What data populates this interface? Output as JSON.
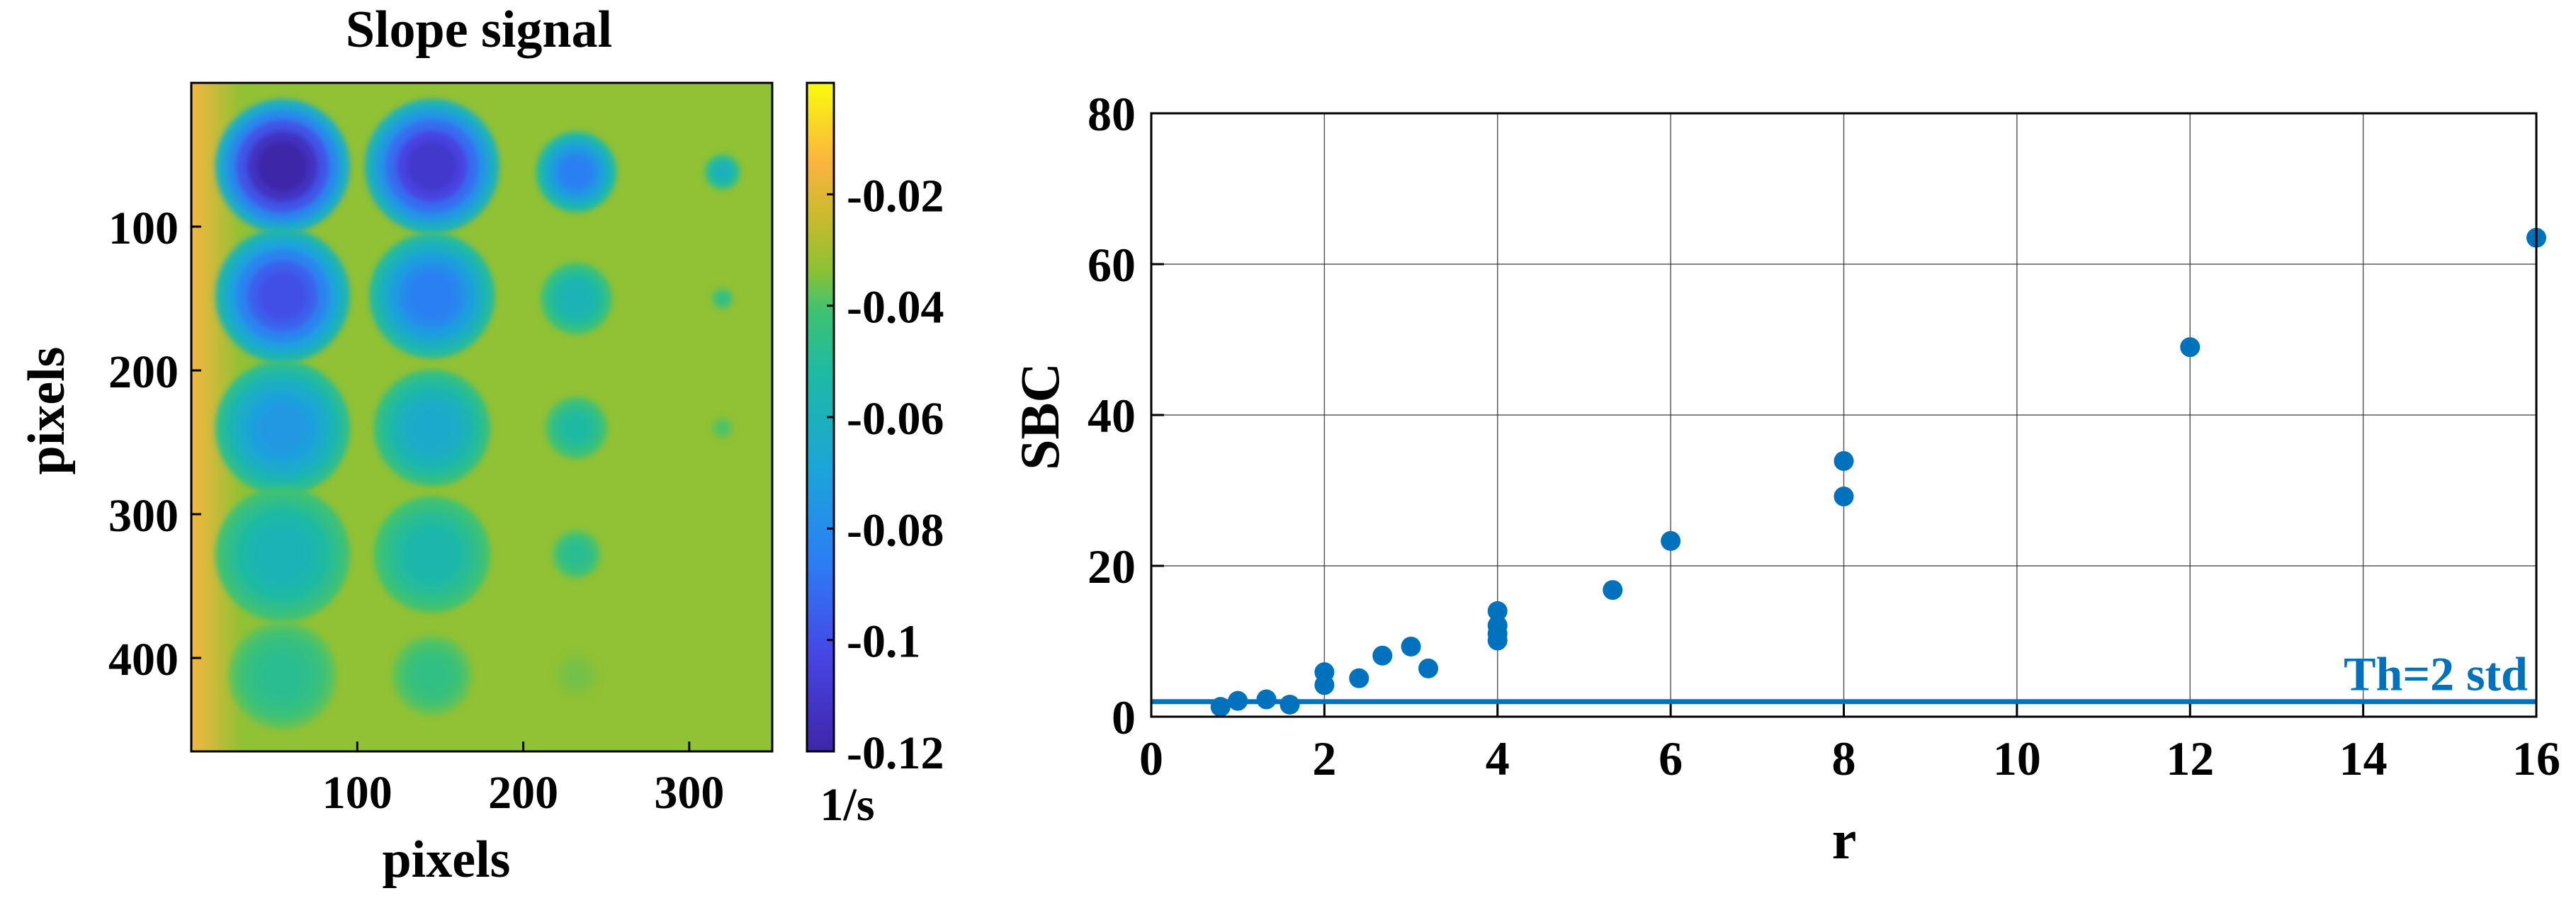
{
  "chart_data": [
    {
      "type": "heatmap",
      "title": "Slope signal",
      "xlabel": "pixels",
      "ylabel": "pixels",
      "xlim": [
        0,
        350
      ],
      "ylim": [
        0,
        465
      ],
      "x_ticks": [
        100,
        200,
        300
      ],
      "y_ticks": [
        100,
        200,
        300,
        400
      ],
      "colorbar": {
        "unit": "1/s",
        "range": [
          -0.12,
          0.0
        ],
        "ticks": [
          "-0.02",
          "-0.04",
          "-0.06",
          "-0.08",
          "-0.1",
          "-0.12"
        ],
        "tick_values": [
          -0.02,
          -0.04,
          -0.06,
          -0.08,
          -0.1,
          -0.12
        ]
      },
      "background_value": -0.033,
      "spots": [
        {
          "x": 55,
          "y": 58,
          "r": 30,
          "value": -0.12
        },
        {
          "x": 145,
          "y": 58,
          "r": 30,
          "value": -0.11
        },
        {
          "x": 232,
          "y": 62,
          "r": 18,
          "value": -0.085
        },
        {
          "x": 320,
          "y": 62,
          "r": 8,
          "value": -0.06
        },
        {
          "x": 55,
          "y": 148,
          "r": 30,
          "value": -0.1
        },
        {
          "x": 145,
          "y": 148,
          "r": 28,
          "value": -0.085
        },
        {
          "x": 232,
          "y": 150,
          "r": 16,
          "value": -0.058
        },
        {
          "x": 320,
          "y": 150,
          "r": 5,
          "value": -0.045
        },
        {
          "x": 55,
          "y": 240,
          "r": 30,
          "value": -0.075
        },
        {
          "x": 145,
          "y": 240,
          "r": 26,
          "value": -0.065
        },
        {
          "x": 232,
          "y": 240,
          "r": 14,
          "value": -0.052
        },
        {
          "x": 320,
          "y": 240,
          "r": 5,
          "value": -0.04
        },
        {
          "x": 55,
          "y": 328,
          "r": 30,
          "value": -0.058
        },
        {
          "x": 145,
          "y": 328,
          "r": 26,
          "value": -0.055
        },
        {
          "x": 232,
          "y": 328,
          "r": 11,
          "value": -0.048
        },
        {
          "x": 55,
          "y": 412,
          "r": 24,
          "value": -0.048
        },
        {
          "x": 145,
          "y": 412,
          "r": 18,
          "value": -0.045
        },
        {
          "x": 232,
          "y": 412,
          "r": 10,
          "value": -0.036
        }
      ]
    },
    {
      "type": "scatter",
      "xlabel": "r",
      "ylabel": "SBC",
      "xlim": [
        0,
        16
      ],
      "ylim": [
        0,
        80
      ],
      "x_ticks": [
        0,
        2,
        4,
        6,
        8,
        10,
        12,
        14,
        16
      ],
      "y_ticks": [
        0,
        20,
        40,
        60,
        80
      ],
      "grid": true,
      "color": "#0072BD",
      "points": [
        {
          "x": 0.8,
          "y": 1.3
        },
        {
          "x": 1.0,
          "y": 2.1
        },
        {
          "x": 1.33,
          "y": 2.3
        },
        {
          "x": 1.6,
          "y": 1.6
        },
        {
          "x": 2.0,
          "y": 4.2
        },
        {
          "x": 2.0,
          "y": 5.9
        },
        {
          "x": 2.4,
          "y": 5.1
        },
        {
          "x": 2.67,
          "y": 8.1
        },
        {
          "x": 3.0,
          "y": 9.3
        },
        {
          "x": 3.2,
          "y": 6.4
        },
        {
          "x": 4.0,
          "y": 10.1
        },
        {
          "x": 4.0,
          "y": 11.0
        },
        {
          "x": 4.0,
          "y": 12.1
        },
        {
          "x": 4.0,
          "y": 14.0
        },
        {
          "x": 5.33,
          "y": 16.8
        },
        {
          "x": 6.0,
          "y": 23.3
        },
        {
          "x": 8.0,
          "y": 29.2
        },
        {
          "x": 8.0,
          "y": 33.9
        },
        {
          "x": 12.0,
          "y": 49.0
        },
        {
          "x": 16.0,
          "y": 63.5
        }
      ],
      "threshold": {
        "y": 2.0,
        "label": "Th=2 std"
      }
    }
  ]
}
